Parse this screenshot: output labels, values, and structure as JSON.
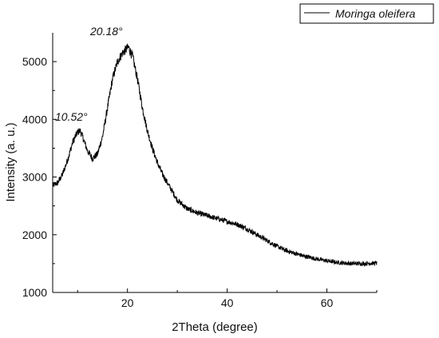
{
  "chart_data": {
    "type": "line",
    "title": "",
    "xlabel": "2Theta (degree)",
    "ylabel": "Intensity (a. u.)",
    "xlim": [
      5,
      70
    ],
    "ylim": [
      1000,
      5500
    ],
    "x_ticks": [
      20,
      40,
      60
    ],
    "y_ticks": [
      1000,
      2000,
      3000,
      4000,
      5000
    ],
    "grid": false,
    "legend_position": "top-right",
    "line_color": "#000000",
    "series": [
      {
        "name": "Moringa oleifera",
        "x": [
          5,
          6,
          7,
          8,
          9,
          10,
          10.52,
          11,
          12,
          13,
          14,
          15,
          16,
          17,
          18,
          19,
          20.18,
          21,
          22,
          23,
          24,
          25,
          26,
          27,
          28,
          29,
          30,
          32,
          34,
          36,
          38,
          40,
          42,
          44,
          46,
          48,
          50,
          52,
          55,
          58,
          60,
          62,
          65,
          68,
          70
        ],
        "values": [
          2850,
          2900,
          3050,
          3300,
          3600,
          3780,
          3800,
          3700,
          3450,
          3320,
          3400,
          3700,
          4200,
          4700,
          5000,
          5150,
          5250,
          5100,
          4700,
          4200,
          3800,
          3500,
          3250,
          3050,
          2900,
          2750,
          2600,
          2450,
          2380,
          2330,
          2280,
          2230,
          2180,
          2100,
          2000,
          1900,
          1800,
          1720,
          1640,
          1580,
          1550,
          1520,
          1500,
          1500,
          1510
        ]
      }
    ],
    "annotations": [
      {
        "text": "10.52°",
        "x": 10.52,
        "y": 3800
      },
      {
        "text": "20.18°",
        "x": 20.18,
        "y": 5250
      }
    ]
  }
}
